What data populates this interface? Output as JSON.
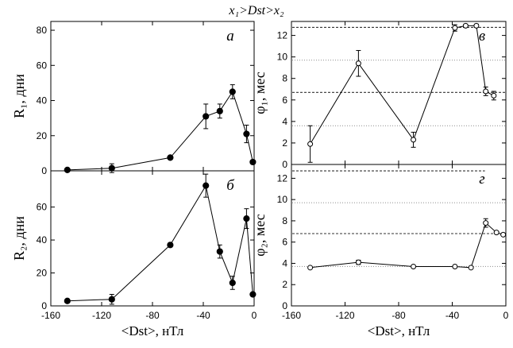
{
  "figure": {
    "title": "x₁>Dst>x₂"
  },
  "chart_data": [
    {
      "id": "a",
      "type": "line",
      "panel_label": "а",
      "ylabel": "R₁, дни",
      "xlabel": "",
      "xlim": [
        -160,
        0
      ],
      "ylim": [
        0,
        85
      ],
      "yticks": [
        "0",
        "20",
        "40",
        "60",
        "80"
      ],
      "xticks": [],
      "marker": "filled",
      "points": [
        {
          "x": -147,
          "y": 0.5,
          "err": 0
        },
        {
          "x": -112,
          "y": 1.5,
          "err": 2.5
        },
        {
          "x": -66,
          "y": 7.5,
          "err": 0
        },
        {
          "x": -38,
          "y": 31,
          "err": 7
        },
        {
          "x": -27,
          "y": 34,
          "err": 4
        },
        {
          "x": -17,
          "y": 45,
          "err": 4
        },
        {
          "x": -6,
          "y": 21,
          "err": 5
        },
        {
          "x": -1,
          "y": 5,
          "err": 0
        }
      ],
      "hlines": []
    },
    {
      "id": "b",
      "type": "line",
      "panel_label": "б",
      "ylabel": "R₂, дни",
      "xlabel": "<Dst>, нТл",
      "xlim": [
        -160,
        0
      ],
      "ylim": [
        0,
        82
      ],
      "yticks": [
        "0",
        "20",
        "40",
        "60"
      ],
      "xticks": [
        "-160",
        "-120",
        "-80",
        "-40",
        "0"
      ],
      "marker": "filled",
      "points": [
        {
          "x": -147,
          "y": 3,
          "err": 0
        },
        {
          "x": -112,
          "y": 4,
          "err": 3
        },
        {
          "x": -66,
          "y": 37,
          "err": 0
        },
        {
          "x": -38,
          "y": 73,
          "err": 7
        },
        {
          "x": -27,
          "y": 33,
          "err": 4
        },
        {
          "x": -17,
          "y": 14,
          "err": 4
        },
        {
          "x": -6,
          "y": 53,
          "err": 6
        },
        {
          "x": -1,
          "y": 7,
          "err": 0
        }
      ],
      "hlines": []
    },
    {
      "id": "c",
      "type": "line",
      "panel_label": "в",
      "ylabel": "φ₁, мес",
      "xlabel": "",
      "xlim": [
        -160,
        0
      ],
      "ylim": [
        0,
        13.3
      ],
      "yticks": [
        "0",
        "2",
        "4",
        "6",
        "8",
        "10",
        "12"
      ],
      "xticks": [],
      "marker": "open",
      "points": [
        {
          "x": -146,
          "y": 1.9,
          "err": 1.7
        },
        {
          "x": -110,
          "y": 9.4,
          "err": 1.2
        },
        {
          "x": -69,
          "y": 2.3,
          "err": 0.7
        },
        {
          "x": -38,
          "y": 12.7,
          "err": 0.3
        },
        {
          "x": -30,
          "y": 12.9,
          "err": 0.15
        },
        {
          "x": -22,
          "y": 12.9,
          "err": 0.15
        },
        {
          "x": -15,
          "y": 6.8,
          "err": 0.4
        },
        {
          "x": -9,
          "y": 6.4,
          "err": 0.4
        }
      ],
      "hlines": [
        {
          "y": 12.75,
          "style": "dash",
          "x_end": 0
        },
        {
          "y": 9.7,
          "style": "dot",
          "x_end": 0
        },
        {
          "y": 6.7,
          "style": "dash",
          "x_end": 0
        },
        {
          "y": 3.6,
          "style": "dot",
          "x_end": 0
        }
      ]
    },
    {
      "id": "d",
      "type": "line",
      "panel_label": "г",
      "ylabel": "φ₂, мес",
      "xlabel": "<Dst>, нТл",
      "xlim": [
        -160,
        0
      ],
      "ylim": [
        0,
        13.3
      ],
      "yticks": [
        "0",
        "2",
        "4",
        "6",
        "8",
        "10",
        "12"
      ],
      "xticks": [
        "-160",
        "-120",
        "-80",
        "-40",
        "0"
      ],
      "marker": "open",
      "points": [
        {
          "x": -146,
          "y": 3.6,
          "err": 0
        },
        {
          "x": -110,
          "y": 4.1,
          "err": 0.2
        },
        {
          "x": -69,
          "y": 3.7,
          "err": 0
        },
        {
          "x": -38,
          "y": 3.7,
          "err": 0
        },
        {
          "x": -26,
          "y": 3.6,
          "err": 0
        },
        {
          "x": -15,
          "y": 7.8,
          "err": 0.4
        },
        {
          "x": -7,
          "y": 6.9,
          "err": 0
        },
        {
          "x": -2,
          "y": 6.7,
          "err": 0
        }
      ],
      "hlines": [
        {
          "y": 12.7,
          "style": "dash",
          "x_end": -15
        },
        {
          "y": 9.7,
          "style": "dot",
          "x_end": 0
        },
        {
          "y": 6.8,
          "style": "dash",
          "x_end": 0
        },
        {
          "y": 3.7,
          "style": "dot",
          "x_end": 0
        }
      ]
    }
  ]
}
